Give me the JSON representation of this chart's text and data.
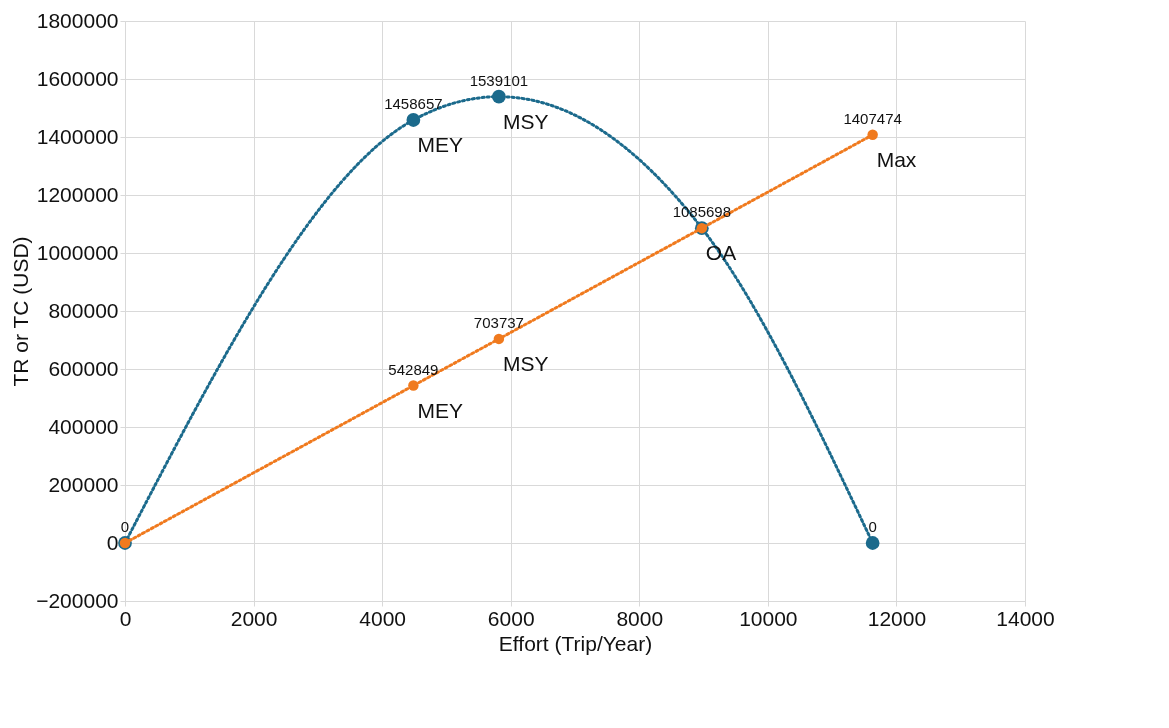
{
  "chart_data": {
    "type": "line",
    "xlabel": "Effort (Trip/Year)",
    "ylabel": "TR or TC (USD)",
    "xlim": [
      0,
      14000
    ],
    "xticks": [
      0,
      2000,
      4000,
      6000,
      8000,
      10000,
      12000,
      14000
    ],
    "ylim": [
      -200000,
      1800000
    ],
    "yticks": [
      -200000,
      0,
      200000,
      400000,
      600000,
      800000,
      1000000,
      1200000,
      1400000,
      1600000,
      1800000
    ],
    "grid": true,
    "marker": "circle",
    "line_style": "dotted",
    "series": [
      {
        "color": "#1b6a8c",
        "x": [
          0,
          4486,
          5816,
          8973,
          11630
        ],
        "values": [
          0,
          1458657,
          1539101,
          1085698,
          0
        ],
        "value_labels": [
          "0",
          "1458657",
          "1539101",
          null,
          "0"
        ]
      },
      {
        "color": "#f07a1e",
        "x": [
          0,
          4486,
          5816,
          8973,
          11630
        ],
        "values": [
          0,
          542849,
          703737,
          1085698,
          1407474
        ],
        "value_labels": [
          null,
          "542849",
          "703737",
          "1085698",
          "1407474"
        ]
      }
    ],
    "annotations": [
      {
        "text": "MEY",
        "x": 4486,
        "y": 1458657
      },
      {
        "text": "MSY",
        "x": 5816,
        "y": 1539101
      },
      {
        "text": "MEY",
        "x": 4486,
        "y": 542849
      },
      {
        "text": "MSY",
        "x": 5816,
        "y": 703737
      },
      {
        "text": "OA",
        "x": 8973,
        "y": 1085698
      },
      {
        "text": "Max",
        "x": 11630,
        "y": 1407474
      }
    ]
  }
}
